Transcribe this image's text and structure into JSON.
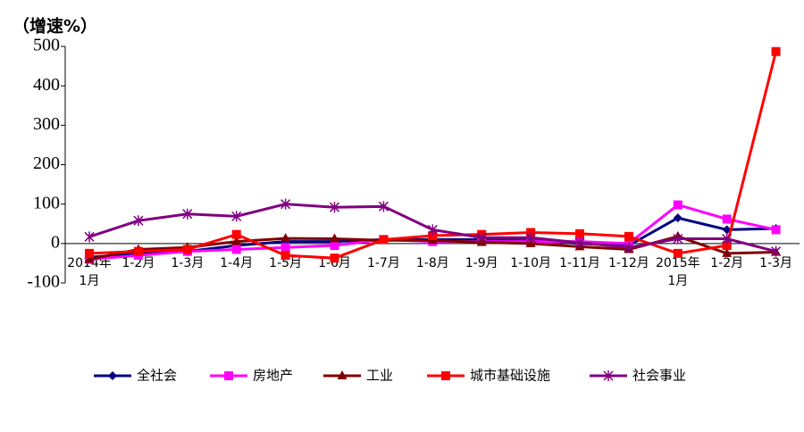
{
  "chart_data": {
    "type": "line",
    "title": "（增速%）",
    "categories": [
      [
        "2014年",
        "1月"
      ],
      "1-2月",
      "1-3月",
      "1-4月",
      "1-5月",
      "1-6月",
      "1-7月",
      "1-8月",
      "1-9月",
      "1-10月",
      "1-11月",
      "1-12月",
      [
        "2015年",
        "1月"
      ],
      "1-2月",
      "1-3月"
    ],
    "ylim": [
      -100,
      500
    ],
    "yticks": [
      -100,
      0,
      100,
      200,
      300,
      400,
      500
    ],
    "series": [
      {
        "name": "全社会",
        "color": "#000080",
        "marker": "diamond",
        "values": [
          -35,
          -25,
          -20,
          -5,
          5,
          5,
          10,
          10,
          10,
          10,
          0,
          -5,
          65,
          35,
          38
        ]
      },
      {
        "name": "房地产",
        "color": "#ff00ff",
        "marker": "square",
        "values": [
          -40,
          -30,
          -20,
          -15,
          -10,
          -5,
          10,
          5,
          5,
          5,
          5,
          0,
          98,
          62,
          35
        ]
      },
      {
        "name": "工业",
        "color": "#800000",
        "marker": "triangle",
        "values": [
          -40,
          -15,
          -10,
          5,
          13,
          12,
          8,
          8,
          3,
          0,
          -8,
          -15,
          18,
          -25,
          -22
        ]
      },
      {
        "name": "城市基础设施",
        "color": "#ff0000",
        "marker": "square",
        "values": [
          -25,
          -20,
          -15,
          23,
          -30,
          -37,
          10,
          20,
          23,
          28,
          25,
          18,
          -25,
          -5,
          487
        ]
      },
      {
        "name": "社会事业",
        "color": "#800080",
        "marker": "star",
        "values": [
          17,
          58,
          75,
          69,
          100,
          92,
          94,
          35,
          15,
          15,
          2,
          -10,
          12,
          12,
          -20
        ]
      }
    ]
  }
}
